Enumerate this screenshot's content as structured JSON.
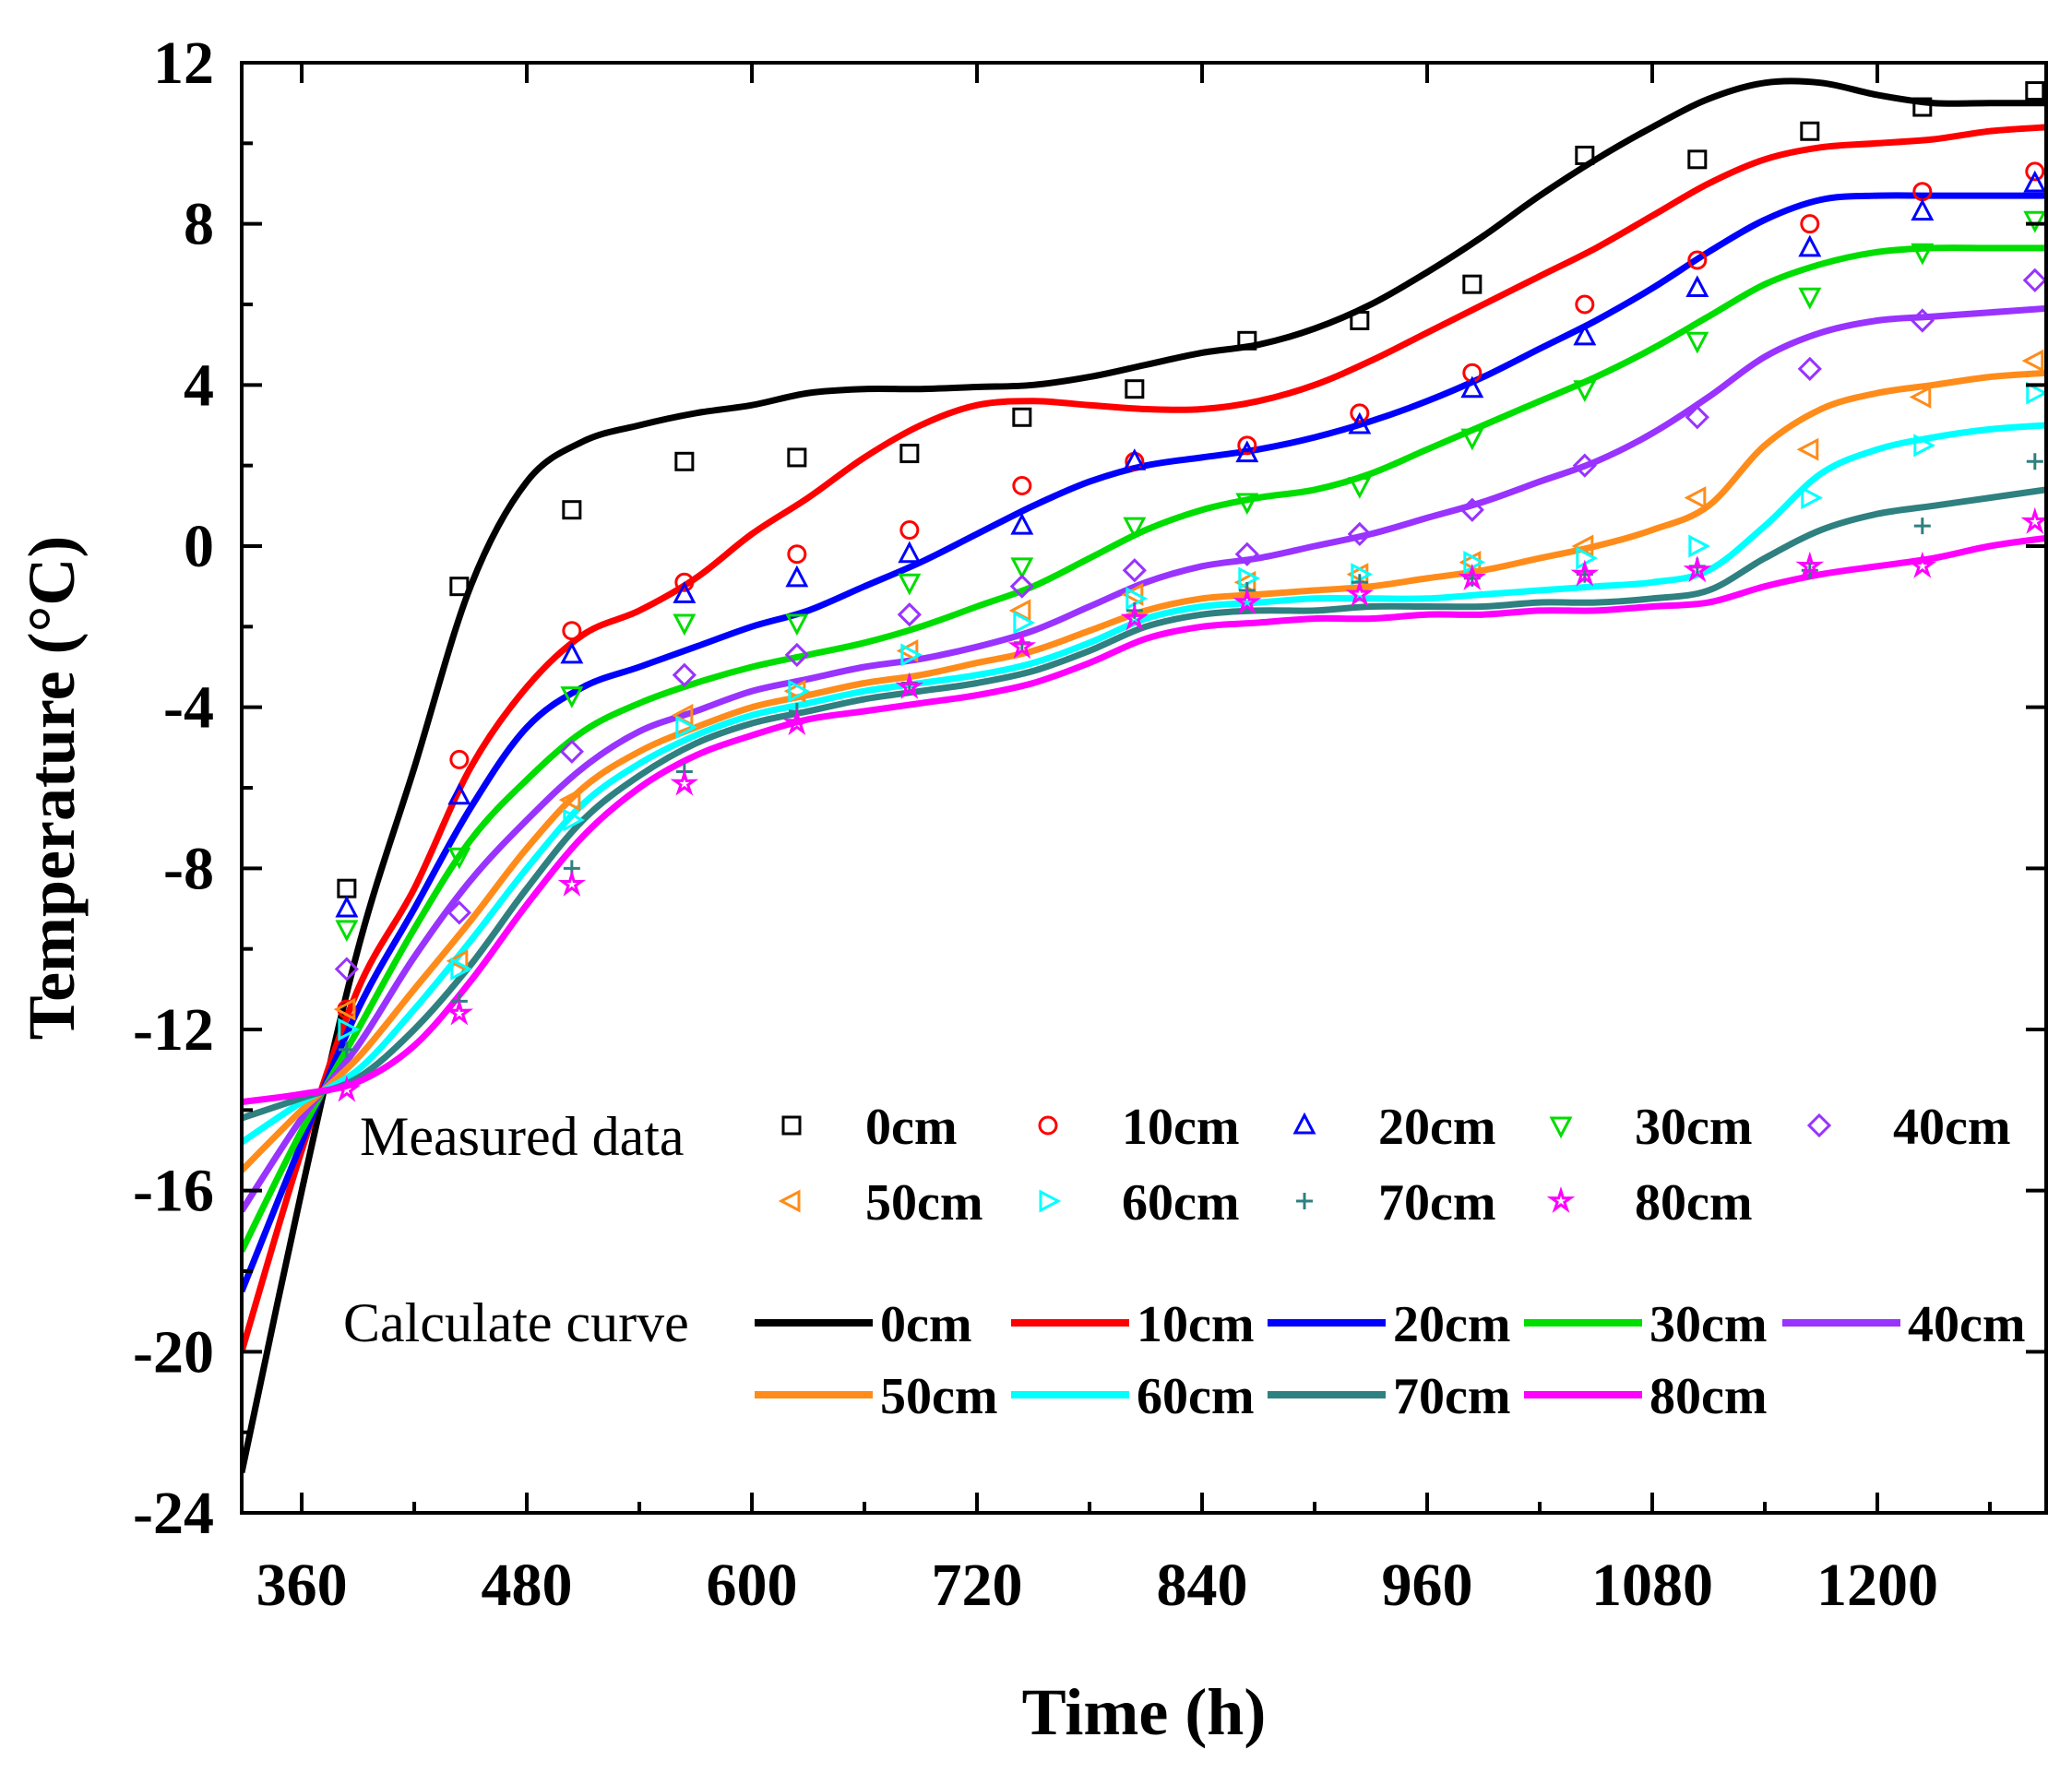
{
  "chart_data": {
    "type": "line",
    "xlabel": "Time (h)",
    "ylabel": "Temperature (°C)",
    "xlim": [
      328,
      1290
    ],
    "ylim": [
      -24,
      12
    ],
    "xticks": [
      360,
      480,
      600,
      720,
      840,
      960,
      1080,
      1200
    ],
    "yticks": [
      -24,
      -20,
      -16,
      -12,
      -8,
      -4,
      0,
      4,
      8,
      12
    ],
    "legend": {
      "position": "bottom-right",
      "measured_label": "Measured data",
      "calculated_label": "Calculate curve"
    },
    "measured_x": [
      384,
      444,
      504,
      564,
      624,
      684,
      744,
      804,
      864,
      924,
      984,
      1044,
      1104,
      1164,
      1224,
      1284
    ],
    "series": [
      {
        "name": "0cm",
        "color": "#000000",
        "marker": "square",
        "measured": [
          -8.5,
          -1.0,
          0.9,
          2.1,
          2.2,
          2.3,
          3.2,
          3.9,
          5.1,
          5.6,
          6.5,
          9.7,
          9.6,
          10.3,
          10.9,
          11.3
        ],
        "curve_x": [
          328,
          360,
          390,
          420,
          450,
          480,
          510,
          540,
          570,
          600,
          630,
          660,
          690,
          720,
          750,
          780,
          810,
          840,
          870,
          900,
          930,
          960,
          990,
          1020,
          1050,
          1080,
          1110,
          1140,
          1170,
          1200,
          1230,
          1260,
          1290
        ],
        "curve_y": [
          -23.0,
          -16.0,
          -10.0,
          -5.5,
          -1.0,
          1.6,
          2.6,
          3.0,
          3.3,
          3.5,
          3.8,
          3.9,
          3.9,
          3.95,
          4.0,
          4.2,
          4.5,
          4.8,
          5.0,
          5.4,
          6.0,
          6.8,
          7.7,
          8.7,
          9.6,
          10.4,
          11.1,
          11.5,
          11.5,
          11.2,
          11.0,
          11.0,
          11.0
        ]
      },
      {
        "name": "10cm",
        "color": "#ff0000",
        "marker": "circle",
        "measured": [
          -11.5,
          -5.3,
          -2.1,
          -0.9,
          -0.2,
          0.4,
          1.5,
          2.1,
          2.5,
          3.3,
          4.3,
          6.0,
          7.1,
          8.0,
          8.8,
          9.3
        ],
        "curve_x": [
          328,
          360,
          390,
          420,
          450,
          480,
          510,
          540,
          570,
          600,
          630,
          660,
          690,
          720,
          750,
          780,
          810,
          840,
          870,
          900,
          930,
          960,
          990,
          1020,
          1050,
          1080,
          1110,
          1140,
          1170,
          1200,
          1230,
          1260,
          1290
        ],
        "curve_y": [
          -20.0,
          -15.0,
          -11.0,
          -8.5,
          -5.5,
          -3.5,
          -2.2,
          -1.6,
          -0.8,
          0.3,
          1.2,
          2.2,
          3.0,
          3.5,
          3.6,
          3.5,
          3.4,
          3.4,
          3.6,
          4.0,
          4.6,
          5.3,
          6.0,
          6.7,
          7.4,
          8.2,
          9.0,
          9.6,
          9.9,
          10.0,
          10.1,
          10.3,
          10.4
        ]
      },
      {
        "name": "20cm",
        "color": "#0000ff",
        "marker": "triangle-up",
        "measured": [
          -9.0,
          -6.2,
          -2.7,
          -1.2,
          -0.8,
          -0.2,
          0.5,
          2.1,
          2.3,
          3.0,
          3.9,
          5.2,
          6.4,
          7.4,
          8.3,
          9.0
        ],
        "curve_x": [
          328,
          360,
          390,
          420,
          450,
          480,
          510,
          540,
          570,
          600,
          630,
          660,
          690,
          720,
          750,
          780,
          810,
          840,
          870,
          900,
          930,
          960,
          990,
          1020,
          1050,
          1080,
          1110,
          1140,
          1170,
          1200,
          1230,
          1260,
          1290
        ],
        "curve_y": [
          -18.5,
          -14.8,
          -11.5,
          -9.0,
          -6.5,
          -4.5,
          -3.5,
          -3.0,
          -2.5,
          -2.0,
          -1.6,
          -1.0,
          -0.4,
          0.3,
          1.0,
          1.6,
          2.0,
          2.2,
          2.4,
          2.7,
          3.1,
          3.6,
          4.2,
          4.9,
          5.6,
          6.4,
          7.3,
          8.1,
          8.6,
          8.7,
          8.7,
          8.7,
          8.7
        ]
      },
      {
        "name": "30cm",
        "color": "#00dd00",
        "marker": "triangle-down",
        "measured": [
          -9.5,
          -7.7,
          -3.7,
          -1.9,
          -1.9,
          -0.9,
          -0.5,
          0.5,
          1.1,
          1.5,
          2.7,
          3.9,
          5.1,
          6.2,
          7.3,
          8.1
        ],
        "curve_x": [
          328,
          360,
          390,
          420,
          450,
          480,
          510,
          540,
          570,
          600,
          630,
          660,
          690,
          720,
          750,
          780,
          810,
          840,
          870,
          900,
          930,
          960,
          990,
          1020,
          1050,
          1080,
          1110,
          1140,
          1170,
          1200,
          1230,
          1260,
          1290
        ],
        "curve_y": [
          -17.5,
          -14.5,
          -12.0,
          -9.5,
          -7.3,
          -5.8,
          -4.6,
          -3.9,
          -3.4,
          -3.0,
          -2.7,
          -2.4,
          -2.0,
          -1.5,
          -1.0,
          -0.3,
          0.4,
          0.9,
          1.2,
          1.4,
          1.8,
          2.4,
          3.0,
          3.6,
          4.2,
          4.9,
          5.7,
          6.5,
          7.0,
          7.3,
          7.4,
          7.4,
          7.4
        ]
      },
      {
        "name": "40cm",
        "color": "#9933ff",
        "marker": "diamond",
        "measured": [
          -10.5,
          -9.1,
          -5.1,
          -3.2,
          -2.7,
          -1.7,
          -1.0,
          -0.6,
          -0.2,
          0.3,
          0.9,
          2.0,
          3.2,
          4.4,
          5.6,
          6.6
        ],
        "curve_x": [
          328,
          360,
          390,
          420,
          450,
          480,
          510,
          540,
          570,
          600,
          630,
          660,
          690,
          720,
          750,
          780,
          810,
          840,
          870,
          900,
          930,
          960,
          990,
          1020,
          1050,
          1080,
          1110,
          1140,
          1170,
          1200,
          1230,
          1260,
          1290
        ],
        "curve_y": [
          -16.5,
          -14.2,
          -12.4,
          -10.2,
          -8.3,
          -6.8,
          -5.5,
          -4.6,
          -4.1,
          -3.6,
          -3.3,
          -3.0,
          -2.8,
          -2.5,
          -2.1,
          -1.5,
          -0.9,
          -0.5,
          -0.3,
          0.0,
          0.3,
          0.7,
          1.1,
          1.6,
          2.1,
          2.8,
          3.7,
          4.7,
          5.3,
          5.6,
          5.7,
          5.8,
          5.9
        ]
      },
      {
        "name": "50cm",
        "color": "#ff8c1a",
        "marker": "triangle-left",
        "measured": [
          -11.5,
          -10.3,
          -6.3,
          -4.2,
          -3.6,
          -2.6,
          -1.6,
          -1.2,
          -0.9,
          -0.7,
          -0.4,
          0.0,
          1.2,
          2.4,
          3.7,
          4.6
        ],
        "curve_x": [
          328,
          360,
          390,
          420,
          450,
          480,
          510,
          540,
          570,
          600,
          630,
          660,
          690,
          720,
          750,
          780,
          810,
          840,
          870,
          900,
          930,
          960,
          990,
          1020,
          1050,
          1080,
          1110,
          1140,
          1170,
          1200,
          1230,
          1260,
          1290
        ],
        "curve_y": [
          -15.5,
          -14.0,
          -12.7,
          -11.0,
          -9.3,
          -7.5,
          -6.0,
          -5.1,
          -4.5,
          -4.0,
          -3.7,
          -3.4,
          -3.2,
          -2.9,
          -2.6,
          -2.1,
          -1.6,
          -1.3,
          -1.2,
          -1.1,
          -1.0,
          -0.8,
          -0.6,
          -0.3,
          0.0,
          0.4,
          1.0,
          2.5,
          3.4,
          3.8,
          4.0,
          4.2,
          4.3
        ]
      },
      {
        "name": "60cm",
        "color": "#00ffff",
        "marker": "triangle-right",
        "measured": [
          -12.0,
          -10.5,
          -6.8,
          -4.5,
          -3.6,
          -2.7,
          -1.9,
          -1.3,
          -0.8,
          -0.7,
          -0.4,
          -0.3,
          0.0,
          1.2,
          2.5,
          3.8
        ],
        "curve_x": [
          328,
          360,
          390,
          420,
          450,
          480,
          510,
          540,
          570,
          600,
          630,
          660,
          690,
          720,
          750,
          780,
          810,
          840,
          870,
          900,
          930,
          960,
          990,
          1020,
          1050,
          1080,
          1110,
          1140,
          1170,
          1200,
          1230,
          1260,
          1290
        ],
        "curve_y": [
          -14.8,
          -13.8,
          -13.0,
          -11.5,
          -9.8,
          -8.0,
          -6.4,
          -5.4,
          -4.7,
          -4.2,
          -3.9,
          -3.6,
          -3.4,
          -3.2,
          -2.9,
          -2.4,
          -1.8,
          -1.5,
          -1.4,
          -1.3,
          -1.3,
          -1.3,
          -1.2,
          -1.1,
          -1.0,
          -0.9,
          -0.6,
          0.5,
          1.8,
          2.4,
          2.7,
          2.9,
          3.0
        ]
      },
      {
        "name": "70cm",
        "color": "#2f8080",
        "marker": "plus",
        "measured": [
          -12.5,
          -11.3,
          -8.0,
          -5.6,
          -4.1,
          -3.4,
          -2.4,
          -1.6,
          -1.1,
          -0.9,
          -0.8,
          -0.7,
          -0.5,
          -0.6,
          0.5,
          2.1
        ],
        "curve_x": [
          328,
          360,
          390,
          420,
          450,
          480,
          510,
          540,
          570,
          600,
          630,
          660,
          690,
          720,
          750,
          780,
          810,
          840,
          870,
          900,
          930,
          960,
          990,
          1020,
          1050,
          1080,
          1110,
          1140,
          1170,
          1200,
          1230,
          1260,
          1290
        ],
        "curve_y": [
          -14.2,
          -13.7,
          -13.2,
          -12.0,
          -10.4,
          -8.5,
          -6.8,
          -5.7,
          -4.9,
          -4.4,
          -4.1,
          -3.8,
          -3.6,
          -3.4,
          -3.1,
          -2.6,
          -2.0,
          -1.7,
          -1.6,
          -1.6,
          -1.5,
          -1.5,
          -1.5,
          -1.4,
          -1.4,
          -1.3,
          -1.1,
          -0.3,
          0.4,
          0.8,
          1.0,
          1.2,
          1.4
        ]
      },
      {
        "name": "80cm",
        "color": "#ff00ff",
        "marker": "star",
        "measured": [
          -13.5,
          -11.6,
          -8.4,
          -5.9,
          -4.4,
          -3.5,
          -2.5,
          -1.8,
          -1.4,
          -1.2,
          -0.8,
          -0.7,
          -0.6,
          -0.5,
          -0.5,
          0.6
        ],
        "curve_x": [
          328,
          360,
          390,
          420,
          450,
          480,
          510,
          540,
          570,
          600,
          630,
          660,
          690,
          720,
          750,
          780,
          810,
          840,
          870,
          900,
          930,
          960,
          990,
          1020,
          1050,
          1080,
          1110,
          1140,
          1170,
          1200,
          1230,
          1260,
          1290
        ],
        "curve_y": [
          -13.8,
          -13.6,
          -13.3,
          -12.4,
          -10.8,
          -8.9,
          -7.2,
          -6.0,
          -5.2,
          -4.7,
          -4.3,
          -4.1,
          -3.9,
          -3.7,
          -3.4,
          -2.9,
          -2.3,
          -2.0,
          -1.9,
          -1.8,
          -1.8,
          -1.7,
          -1.7,
          -1.6,
          -1.6,
          -1.5,
          -1.4,
          -1.0,
          -0.7,
          -0.5,
          -0.3,
          0.0,
          0.2
        ]
      }
    ]
  }
}
